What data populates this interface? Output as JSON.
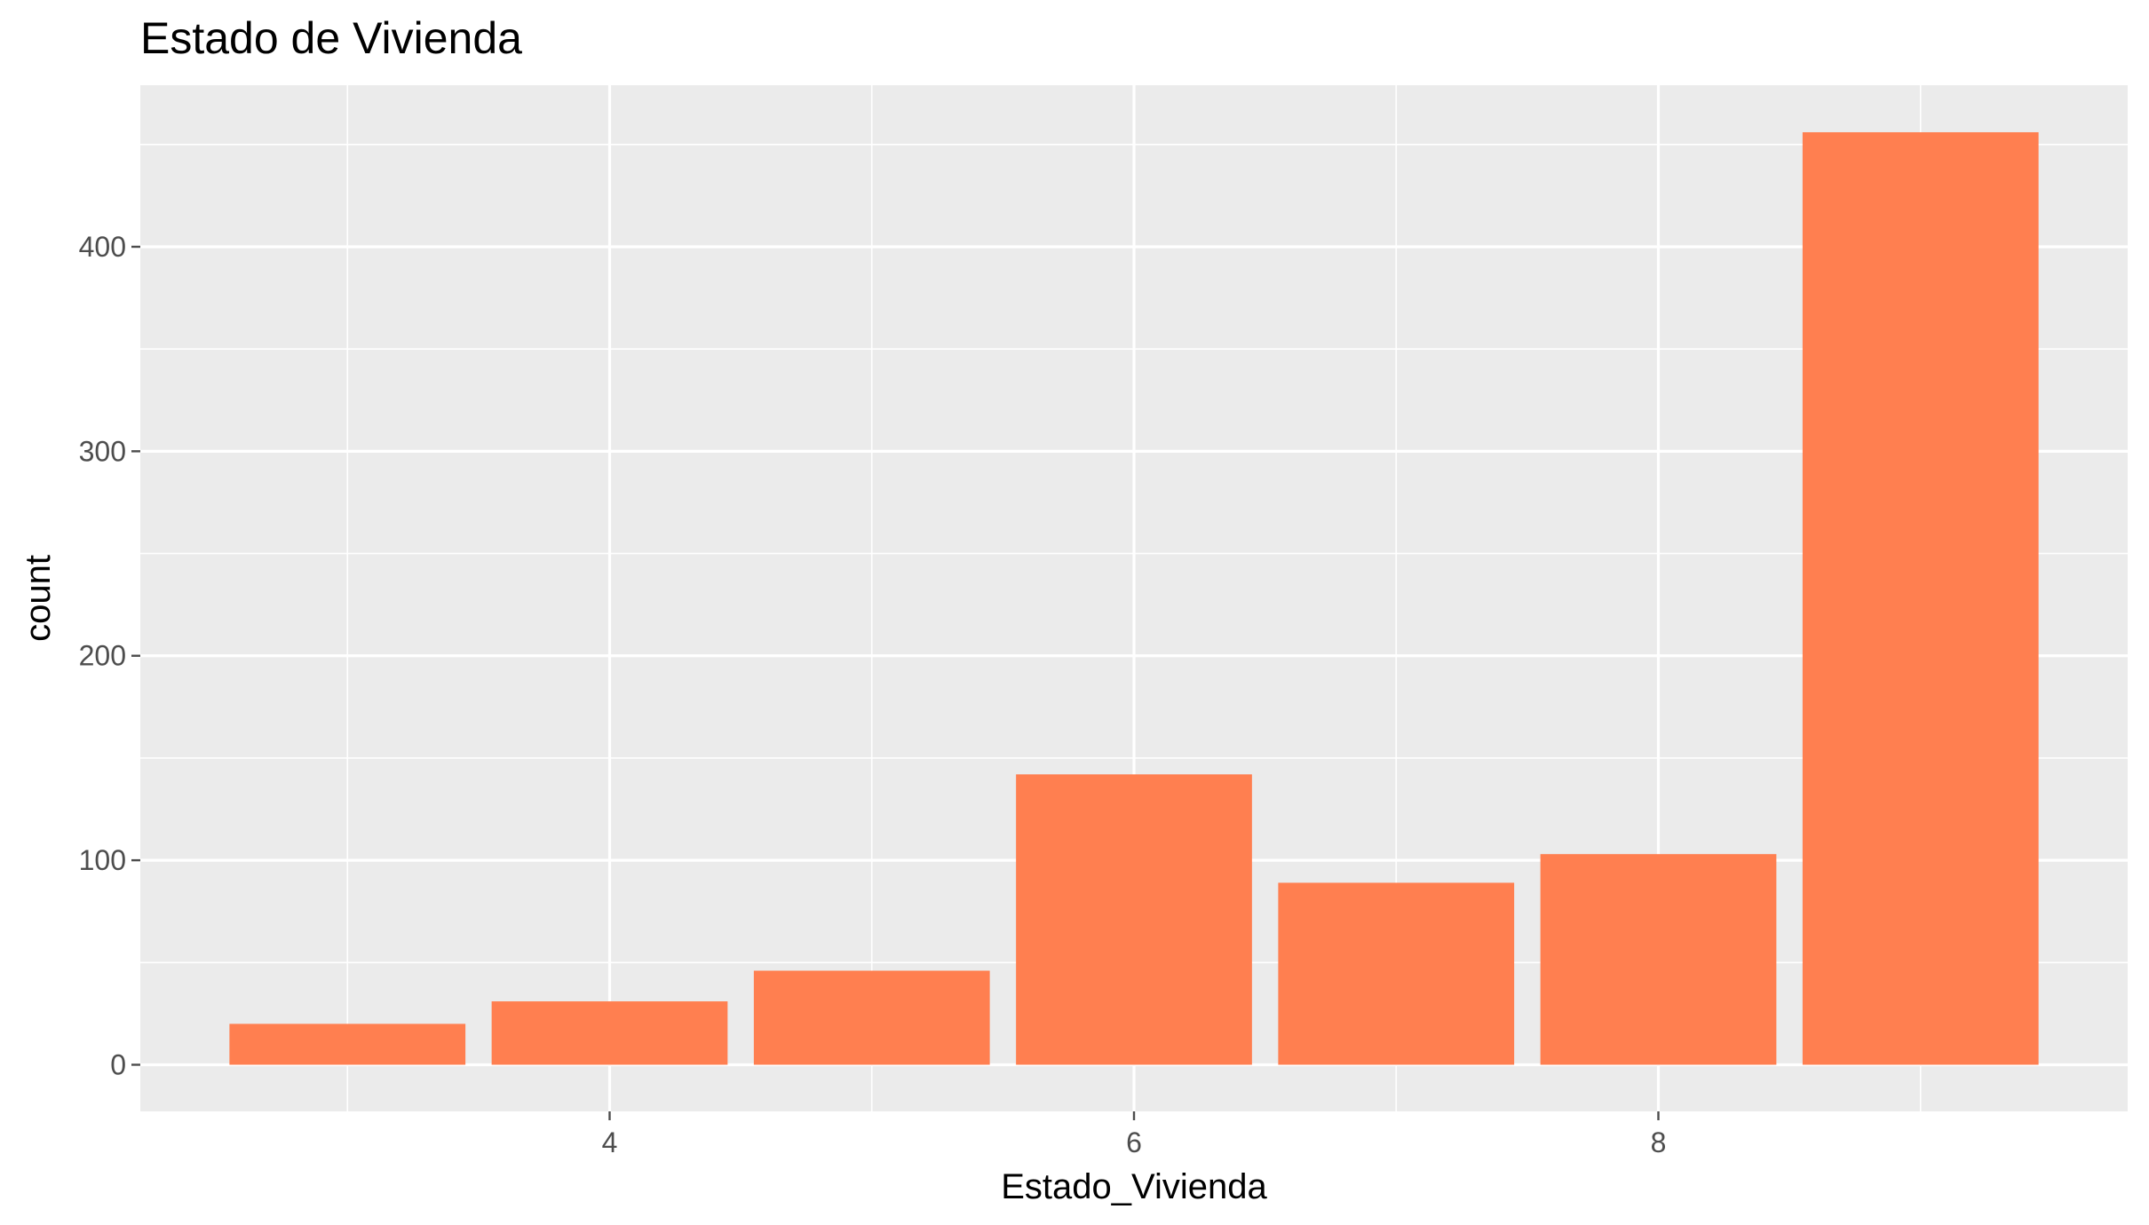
{
  "chart_data": {
    "type": "bar",
    "title": "Estado de Vivienda",
    "xlabel": "Estado_Vivienda",
    "ylabel": "count",
    "x": [
      3,
      4,
      5,
      6,
      7,
      8,
      9
    ],
    "values": [
      20,
      31,
      46,
      142,
      89,
      103,
      456
    ],
    "xlim": [
      2.21,
      9.79
    ],
    "ylim": [
      -22.8,
      479
    ],
    "x_ticks": [
      4,
      6,
      8
    ],
    "y_ticks": [
      0,
      100,
      200,
      300,
      400
    ],
    "grid": true,
    "legend": "none",
    "bar_color": "#FF7F50",
    "panel_color": "#EBEBEB",
    "grid_color": "#FFFFFF",
    "tick_color": "#4D4D4D"
  }
}
